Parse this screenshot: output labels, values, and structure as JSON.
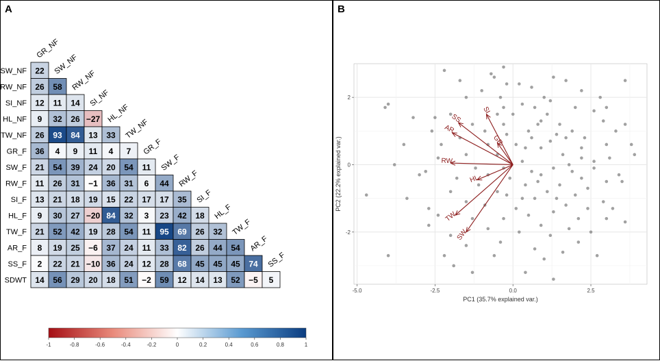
{
  "panels": {
    "a_label": "A",
    "b_label": "B"
  },
  "chart_data": [
    {
      "type": "heatmap",
      "layout": "lower-triangular correlation matrix",
      "variables": [
        "GR_NF",
        "SW_NF",
        "RW_NF",
        "SI_NF",
        "HL_NF",
        "TW_NF",
        "GR_F",
        "SW_F",
        "RW_F",
        "SI_F",
        "HL_F",
        "TW_F",
        "AR_F",
        "SS_F",
        "SDWT"
      ],
      "row_labels": [
        "SW_NF",
        "RW_NF",
        "SI_NF",
        "HL_NF",
        "TW_NF",
        "GR_F",
        "SW_F",
        "RW_F",
        "SI_F",
        "HL_F",
        "TW_F",
        "AR_F",
        "SS_F",
        "SDWT"
      ],
      "diagonal_labels": [
        "GR_NF",
        "SW_NF",
        "RW_NF",
        "SI_NF",
        "HL_NF",
        "TW_NF",
        "GR_F",
        "SW_F",
        "RW_F",
        "SI_F",
        "HL_F",
        "TW_F",
        "AR_F",
        "SS_F"
      ],
      "values": [
        [
          22
        ],
        [
          26,
          58
        ],
        [
          12,
          11,
          14
        ],
        [
          9,
          32,
          26,
          -27
        ],
        [
          26,
          93,
          84,
          13,
          33
        ],
        [
          36,
          4,
          9,
          11,
          4,
          7
        ],
        [
          21,
          54,
          39,
          24,
          20,
          54,
          11
        ],
        [
          11,
          26,
          31,
          -1,
          36,
          31,
          6,
          44
        ],
        [
          13,
          21,
          18,
          19,
          15,
          22,
          17,
          17,
          35
        ],
        [
          9,
          30,
          27,
          -20,
          84,
          32,
          3,
          23,
          42,
          18
        ],
        [
          21,
          52,
          42,
          19,
          28,
          54,
          11,
          95,
          69,
          26,
          32
        ],
        [
          8,
          19,
          25,
          -6,
          37,
          24,
          11,
          33,
          82,
          26,
          44,
          54
        ],
        [
          2,
          22,
          21,
          -10,
          36,
          24,
          12,
          28,
          68,
          45,
          45,
          45,
          74
        ],
        [
          14,
          56,
          29,
          20,
          18,
          51,
          -2,
          59,
          12,
          14,
          13,
          52,
          -5,
          5
        ]
      ],
      "display_values": [
        [
          "22"
        ],
        [
          "26",
          "58"
        ],
        [
          "12",
          "11",
          "14"
        ],
        [
          "9",
          "32",
          "26",
          "−27"
        ],
        [
          "26",
          "93",
          "84",
          "13",
          "33"
        ],
        [
          "36",
          "4",
          "9",
          "11",
          "4",
          "7"
        ],
        [
          "21",
          "54",
          "39",
          "24",
          "20",
          "54",
          "11"
        ],
        [
          "11",
          "26",
          "31",
          "−1",
          "36",
          "31",
          "6",
          "44"
        ],
        [
          "13",
          "21",
          "18",
          "19",
          "15",
          "22",
          "17",
          "17",
          "35"
        ],
        [
          "9",
          "30",
          "27",
          "−20",
          "84",
          "32",
          "3",
          "23",
          "42",
          "18"
        ],
        [
          "21",
          "52",
          "42",
          "19",
          "28",
          "54",
          "11",
          "95",
          "69",
          "26",
          "32"
        ],
        [
          "8",
          "19",
          "25",
          "−6",
          "37",
          "24",
          "11",
          "33",
          "82",
          "26",
          "44",
          "54"
        ],
        [
          "2",
          "22",
          "21",
          "−10",
          "36",
          "24",
          "12",
          "28",
          "68",
          "45",
          "45",
          "45",
          "74"
        ],
        [
          "14",
          "56",
          "29",
          "20",
          "18",
          "51",
          "−2",
          "59",
          "12",
          "14",
          "13",
          "52",
          "−5",
          "5"
        ]
      ],
      "color_scale": {
        "min": -1,
        "max": 1,
        "low_color": "#a50f15",
        "mid_color": "#ffffff",
        "high_color": "#0b3d80",
        "ticks": [
          -1,
          -0.8,
          -0.6,
          -0.4,
          -0.2,
          0,
          0.2,
          0.4,
          0.6,
          0.8,
          1
        ],
        "tick_labels": [
          "-1",
          "-0.8",
          "-0.6",
          "-0.4",
          "-0.2",
          "0",
          "0.2",
          "0.4",
          "0.6",
          "0.8",
          "1"
        ]
      }
    },
    {
      "type": "scatter",
      "title": "",
      "xlabel": "PC1 (35.7% explained var.)",
      "ylabel": "PC2 (22.2% explained var.)",
      "xlim": [
        -5.1,
        4.3
      ],
      "ylim": [
        -3.55,
        3.0
      ],
      "xticks": [
        -5,
        -2.5,
        0,
        2.5
      ],
      "xtick_labels": [
        "-5.0",
        "-2.5",
        "0.0",
        "2.5"
      ],
      "yticks": [
        -2,
        0,
        2
      ],
      "ytick_labels": [
        "-2",
        "0",
        "2"
      ],
      "grid": true,
      "point_color": "#8a8a8a",
      "arrow_color": "#8b1a1a",
      "points": [
        [
          -2.2,
          2.8
        ],
        [
          -1.0,
          2.2
        ],
        [
          -1.5,
          2.0
        ],
        [
          -4.0,
          1.8
        ],
        [
          -4.1,
          1.7
        ],
        [
          -2.0,
          1.5
        ],
        [
          -2.5,
          1.4
        ],
        [
          -3.2,
          1.4
        ],
        [
          -1.7,
          2.5
        ],
        [
          -0.6,
          2.6
        ],
        [
          -0.3,
          2.9
        ],
        [
          -0.7,
          2.7
        ],
        [
          0.2,
          2.4
        ],
        [
          0.6,
          2.3
        ],
        [
          1.3,
          2.6
        ],
        [
          1.2,
          1.9
        ],
        [
          2.2,
          2.2
        ],
        [
          1.7,
          2.5
        ],
        [
          3.6,
          2.5
        ],
        [
          -0.4,
          2.0
        ],
        [
          0.3,
          1.8
        ],
        [
          0.7,
          1.7
        ],
        [
          2.0,
          1.7
        ],
        [
          2.6,
          1.6
        ],
        [
          3.0,
          1.7
        ],
        [
          0.9,
          1.3
        ],
        [
          1.5,
          1.2
        ],
        [
          0.8,
          1.2
        ],
        [
          1.1,
          1.5
        ],
        [
          -0.3,
          1.7
        ],
        [
          -0.5,
          1.5
        ],
        [
          -2.6,
          1.0
        ],
        [
          -1.3,
          1.2
        ],
        [
          -0.3,
          1.2
        ],
        [
          0.5,
          1.0
        ],
        [
          1.4,
          0.9
        ],
        [
          1.9,
          1.0
        ],
        [
          2.3,
          0.8
        ],
        [
          3.6,
          1.2
        ],
        [
          3.0,
          0.6
        ],
        [
          -3.5,
          0.6
        ],
        [
          -2.4,
          0.2
        ],
        [
          -1.5,
          0.3
        ],
        [
          -1.7,
          0.8
        ],
        [
          -0.8,
          0.6
        ],
        [
          -0.2,
          0.9
        ],
        [
          0.4,
          0.5
        ],
        [
          0.9,
          0.5
        ],
        [
          1.2,
          0.7
        ],
        [
          1.7,
          0.8
        ],
        [
          2.2,
          0.5
        ],
        [
          2.6,
          0.1
        ],
        [
          3.1,
          0.2
        ],
        [
          3.3,
          1.0
        ],
        [
          3.8,
          0.6
        ],
        [
          -4.7,
          -0.9
        ],
        [
          -2.8,
          -0.2
        ],
        [
          -1.2,
          -0.1
        ],
        [
          -0.8,
          -0.3
        ],
        [
          -0.3,
          -0.1
        ],
        [
          0.3,
          0.1
        ],
        [
          0.6,
          -0.2
        ],
        [
          0.9,
          -0.3
        ],
        [
          1.3,
          -0.1
        ],
        [
          1.8,
          0.0
        ],
        [
          2.2,
          -0.4
        ],
        [
          2.6,
          -0.1
        ],
        [
          3.0,
          -0.5
        ],
        [
          3.4,
          -0.3
        ],
        [
          -3.4,
          -1.0
        ],
        [
          -2.7,
          -1.3
        ],
        [
          -2.0,
          -0.8
        ],
        [
          -1.5,
          -1.1
        ],
        [
          -0.9,
          -1.2
        ],
        [
          -0.5,
          -0.8
        ],
        [
          -0.1,
          -0.4
        ],
        [
          0.4,
          -0.6
        ],
        [
          0.7,
          -1.0
        ],
        [
          1.1,
          -0.8
        ],
        [
          1.5,
          -0.6
        ],
        [
          2.0,
          -0.9
        ],
        [
          2.4,
          -1.3
        ],
        [
          2.9,
          -1.1
        ],
        [
          3.5,
          -0.5
        ],
        [
          -2.7,
          -1.8
        ],
        [
          -2.0,
          -2.1
        ],
        [
          -1.3,
          -1.6
        ],
        [
          -0.8,
          -1.9
        ],
        [
          -0.3,
          -1.6
        ],
        [
          0.1,
          -1.3
        ],
        [
          0.5,
          -1.5
        ],
        [
          0.9,
          -1.8
        ],
        [
          1.3,
          -1.4
        ],
        [
          1.7,
          -1.2
        ],
        [
          2.1,
          -1.6
        ],
        [
          2.5,
          -2.0
        ],
        [
          3.0,
          -1.6
        ],
        [
          3.6,
          -1.7
        ],
        [
          -4.0,
          -2.7
        ],
        [
          -2.2,
          -2.7
        ],
        [
          -1.5,
          -2.4
        ],
        [
          -0.4,
          -2.3
        ],
        [
          0.2,
          -2.0
        ],
        [
          0.7,
          -2.5
        ],
        [
          1.2,
          -2.1
        ],
        [
          1.6,
          -2.6
        ],
        [
          2.1,
          -2.3
        ],
        [
          -1.3,
          -3.2
        ],
        [
          0.4,
          -3.2
        ],
        [
          1.3,
          -3.4
        ],
        [
          2.7,
          -2.7
        ],
        [
          -3.0,
          -0.3
        ],
        [
          -2.3,
          0.6
        ],
        [
          -0.9,
          1.0
        ],
        [
          0.1,
          0.6
        ],
        [
          1.6,
          0.3
        ],
        [
          2.4,
          -0.7
        ],
        [
          -0.2,
          -0.9
        ],
        [
          0.8,
          -0.5
        ],
        [
          1.9,
          -0.2
        ],
        [
          3.2,
          -1.3
        ],
        [
          -1.8,
          -0.4
        ],
        [
          0.0,
          1.5
        ],
        [
          1.0,
          2.0
        ],
        [
          2.8,
          2.0
        ],
        [
          -3.8,
          0.0
        ],
        [
          -1.1,
          -0.6
        ],
        [
          0.3,
          -1.0
        ],
        [
          1.4,
          -1.0
        ],
        [
          2.2,
          0.2
        ],
        [
          -0.5,
          0.3
        ],
        [
          0.6,
          0.8
        ],
        [
          1.8,
          -1.9
        ],
        [
          -2.4,
          -1.5
        ],
        [
          -0.6,
          -2.7
        ],
        [
          3.9,
          0.3
        ],
        [
          1.0,
          -2.8
        ],
        [
          -1.9,
          -3.0
        ],
        [
          2.9,
          1.3
        ],
        [
          -0.2,
          2.4
        ]
      ],
      "arrows": [
        {
          "label": "SS",
          "x": -1.75,
          "y": 1.25
        },
        {
          "label": "SI",
          "x": -0.85,
          "y": 1.5
        },
        {
          "label": "AR",
          "x": -1.95,
          "y": 0.95
        },
        {
          "label": "GR",
          "x": -0.5,
          "y": 0.65
        },
        {
          "label": "RW",
          "x": -2.0,
          "y": 0.05
        },
        {
          "label": "HL",
          "x": -1.15,
          "y": -0.45
        },
        {
          "label": "TW",
          "x": -1.85,
          "y": -1.5
        },
        {
          "label": "SW",
          "x": -1.5,
          "y": -2.0
        }
      ]
    }
  ]
}
